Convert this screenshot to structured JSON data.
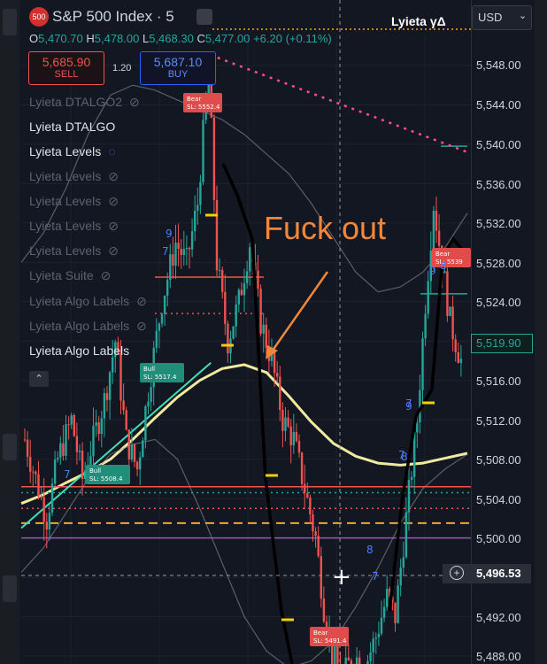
{
  "header": {
    "badge": "500",
    "symbol": "S&P 500 Index",
    "separator": "·",
    "interval": "5",
    "brand": "Lyieta γΔ",
    "currency": "USD",
    "ohlc": {
      "o_label": "O",
      "o": "5,470.70",
      "h_label": "H",
      "h": "5,478.00",
      "l_label": "L",
      "l": "5,468.30",
      "c_label": "C",
      "c": "5,477.00",
      "change": "+6.20 (+0.11%)"
    }
  },
  "trade": {
    "sell_price": "5,685.90",
    "sell_label": "SELL",
    "spread": "1.20",
    "buy_price": "5,687.10",
    "buy_label": "BUY"
  },
  "indicators": [
    {
      "label": "Lyieta DTALGO2",
      "visible": false
    },
    {
      "label": "Lyieta DTALGO",
      "visible": true
    },
    {
      "label": "Lyieta Levels",
      "visible": true,
      "loading": true
    },
    {
      "label": "Lyieta Levels",
      "visible": false
    },
    {
      "label": "Lyieta Levels",
      "visible": false
    },
    {
      "label": "Lyieta Levels",
      "visible": false
    },
    {
      "label": "Lyieta Levels",
      "visible": false
    },
    {
      "label": "Lyieta Suite",
      "visible": false
    },
    {
      "label": "Lyieta Algo Labels",
      "visible": false
    },
    {
      "label": "Lyieta Algo Labels",
      "visible": false
    },
    {
      "label": "Lyieta Algo Labels",
      "visible": true
    }
  ],
  "annotation": {
    "text": "Fuck out",
    "color": "#f2873a"
  },
  "price_axis": {
    "labels": [
      "5,548.00",
      "5,544.00",
      "5,540.00",
      "5,536.00",
      "5,532.00",
      "5,528.00",
      "5,524.00",
      "5,516.00",
      "5,512.00",
      "5,508.00",
      "5,504.00",
      "5,500.00",
      "5,492.00",
      "5,488.00"
    ],
    "current_price": "5,519.90",
    "crosshair_price": "5,496.53"
  },
  "signal_labels": [
    {
      "side": "Bear",
      "text": "SL: 5552.4"
    },
    {
      "side": "Bull",
      "text": "SL: 5517.4"
    },
    {
      "side": "Bull",
      "text": "SL: 5508.4"
    },
    {
      "side": "Bear",
      "text": "SL: 5539"
    },
    {
      "side": "Bear",
      "text": "SL: 5491.4"
    }
  ],
  "wave_counts": [
    "9",
    "7",
    "7",
    "8",
    "9",
    "7",
    "8",
    "7",
    "9",
    "7",
    "8"
  ],
  "colors": {
    "up": "#26a69a",
    "down": "#ef5350",
    "ema": "#f0eaa0",
    "trend": "#3ee0b8",
    "bands": "#8a8e99",
    "dashed_orange": "#f5a623",
    "support": "#ef5350",
    "resistance_dots": "#ff4d8d"
  },
  "chart_data": {
    "type": "candlestick",
    "y_axis_range": [
      5486.5,
      5550.5
    ],
    "series": [
      {
        "name": "EMA",
        "type": "line",
        "color": "#f0eaa0",
        "values": [
          5503.5,
          5504.4,
          5505.6,
          5506.7,
          5508.0,
          5510.0,
          5512.2,
          5514.3,
          5516.0,
          5517.2,
          5517.6,
          5516.8,
          5514.4,
          5511.8,
          5509.6,
          5508.3,
          5507.6,
          5507.4,
          5507.6,
          5508.1,
          5508.6
        ]
      },
      {
        "name": "Upper Band",
        "type": "line",
        "color": "#8a8e99",
        "values": [
          5528.0,
          5531.0,
          5535.5,
          5541.0,
          5545.0,
          5546.0,
          5545.5,
          5544.5,
          5543.5,
          5542.5,
          5541.0,
          5539.0,
          5537.0,
          5534.0,
          5530.5,
          5527.0,
          5525.0,
          5525.5,
          5527.0,
          5529.5,
          5533.0
        ]
      },
      {
        "name": "Lower Band",
        "type": "line",
        "color": "#8a8e99",
        "values": [
          5496.5,
          5499.0,
          5502.5,
          5506.0,
          5508.5,
          5509.5,
          5510.0,
          5508.0,
          5503.0,
          5497.5,
          5492.0,
          5488.5,
          5486.8,
          5487.5,
          5489.5,
          5493.0,
          5497.0,
          5501.5,
          5505.0,
          5507.0,
          5508.5
        ]
      }
    ],
    "horizontal_levels": [
      {
        "price": 5501.5,
        "style": "dashed",
        "color": "#f5a623"
      },
      {
        "price": 5503.0,
        "style": "dotted",
        "color": "#ef5350"
      },
      {
        "price": 5504.6,
        "style": "dotted",
        "color": "#26a69a"
      },
      {
        "price": 5505.2,
        "style": "solid",
        "color": "#ef5350"
      },
      {
        "price": 5500.0,
        "style": "solid",
        "color": "#a050c0"
      },
      {
        "price": 5522.8,
        "style": "dotted",
        "color": "#ef5350"
      },
      {
        "price": 5526.5,
        "style": "solid",
        "color": "#ef5350"
      },
      {
        "price": 5539.8,
        "style": "solid",
        "color": "#26a69a"
      },
      {
        "price": 5524.8,
        "style": "solid",
        "color": "#26a69a"
      }
    ],
    "trend_lines": [
      {
        "from": [
          0,
          5501.0
        ],
        "to": [
          8.5,
          5517.8
        ],
        "color": "#3ee0b8"
      },
      {
        "from": [
          8.8,
          5548.8
        ],
        "to": [
          20,
          5539.2
        ],
        "color": "#ff4d8d",
        "style": "dotted"
      }
    ],
    "last_price": 5519.9,
    "crosshair_price": 5496.53
  }
}
